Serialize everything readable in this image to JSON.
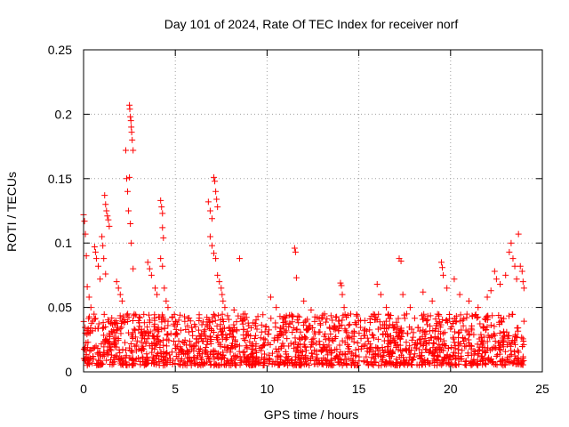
{
  "chart_data": {
    "type": "scatter",
    "title": "Day 101 of 2024, Rate Of TEC Index for receiver norf",
    "xlabel": "GPS time / hours",
    "ylabel": "ROTI / TECUs",
    "xlim": [
      0,
      25
    ],
    "ylim": [
      0,
      0.25
    ],
    "xticks": [
      0,
      5,
      10,
      15,
      20,
      25
    ],
    "xtick_labels": [
      "0",
      "5",
      "10",
      "15",
      "20",
      "25"
    ],
    "yticks": [
      0,
      0.05,
      0.1,
      0.15,
      0.2,
      0.25
    ],
    "ytick_labels": [
      "0",
      "0.05",
      "0.1",
      "0.15",
      "0.2",
      "0.25"
    ],
    "grid": true,
    "marker": "plus",
    "series_color": "#ff0000",
    "series": [
      {
        "name": "ROTI",
        "points": [
          [
            0.0,
            0.122
          ],
          [
            0.05,
            0.117
          ],
          [
            0.1,
            0.107
          ],
          [
            0.15,
            0.09
          ],
          [
            0.2,
            0.066
          ],
          [
            0.3,
            0.058
          ],
          [
            0.4,
            0.05
          ],
          [
            0.6,
            0.097
          ],
          [
            0.65,
            0.093
          ],
          [
            0.7,
            0.088
          ],
          [
            0.8,
            0.082
          ],
          [
            0.9,
            0.072
          ],
          [
            1.0,
            0.105
          ],
          [
            1.05,
            0.098
          ],
          [
            1.1,
            0.088
          ],
          [
            1.2,
            0.076
          ],
          [
            1.15,
            0.137
          ],
          [
            1.2,
            0.13
          ],
          [
            1.25,
            0.125
          ],
          [
            1.3,
            0.121
          ],
          [
            1.35,
            0.118
          ],
          [
            1.4,
            0.113
          ],
          [
            1.8,
            0.07
          ],
          [
            1.9,
            0.065
          ],
          [
            2.0,
            0.06
          ],
          [
            2.1,
            0.055
          ],
          [
            2.3,
            0.172
          ],
          [
            2.35,
            0.15
          ],
          [
            2.4,
            0.14
          ],
          [
            2.45,
            0.125
          ],
          [
            2.5,
            0.207
          ],
          [
            2.52,
            0.204
          ],
          [
            2.55,
            0.198
          ],
          [
            2.58,
            0.195
          ],
          [
            2.6,
            0.19
          ],
          [
            2.62,
            0.186
          ],
          [
            2.65,
            0.18
          ],
          [
            2.7,
            0.172
          ],
          [
            2.5,
            0.151
          ],
          [
            2.55,
            0.115
          ],
          [
            2.6,
            0.1
          ],
          [
            2.7,
            0.08
          ],
          [
            3.5,
            0.085
          ],
          [
            3.6,
            0.08
          ],
          [
            3.7,
            0.075
          ],
          [
            3.9,
            0.065
          ],
          [
            4.0,
            0.06
          ],
          [
            4.2,
            0.133
          ],
          [
            4.25,
            0.128
          ],
          [
            4.3,
            0.123
          ],
          [
            4.3,
            0.112
          ],
          [
            4.35,
            0.104
          ],
          [
            4.2,
            0.088
          ],
          [
            4.3,
            0.082
          ],
          [
            4.4,
            0.065
          ],
          [
            4.5,
            0.055
          ],
          [
            4.6,
            0.05
          ],
          [
            6.8,
            0.132
          ],
          [
            6.9,
            0.125
          ],
          [
            7.0,
            0.119
          ],
          [
            7.1,
            0.151
          ],
          [
            7.15,
            0.148
          ],
          [
            7.2,
            0.14
          ],
          [
            7.25,
            0.134
          ],
          [
            7.3,
            0.128
          ],
          [
            6.9,
            0.105
          ],
          [
            7.0,
            0.098
          ],
          [
            7.1,
            0.092
          ],
          [
            7.2,
            0.088
          ],
          [
            7.3,
            0.075
          ],
          [
            7.4,
            0.07
          ],
          [
            7.5,
            0.065
          ],
          [
            7.55,
            0.06
          ],
          [
            7.6,
            0.055
          ],
          [
            7.7,
            0.05
          ],
          [
            8.5,
            0.088
          ],
          [
            8.2,
            0.048
          ],
          [
            8.8,
            0.045
          ],
          [
            9.5,
            0.043
          ],
          [
            10.2,
            0.058
          ],
          [
            10.5,
            0.05
          ],
          [
            11.5,
            0.096
          ],
          [
            11.55,
            0.093
          ],
          [
            11.6,
            0.073
          ],
          [
            12.0,
            0.055
          ],
          [
            12.4,
            0.048
          ],
          [
            14.0,
            0.069
          ],
          [
            14.05,
            0.067
          ],
          [
            14.1,
            0.06
          ],
          [
            14.2,
            0.05
          ],
          [
            16.0,
            0.068
          ],
          [
            16.2,
            0.06
          ],
          [
            16.5,
            0.05
          ],
          [
            17.2,
            0.088
          ],
          [
            17.3,
            0.086
          ],
          [
            17.4,
            0.06
          ],
          [
            17.8,
            0.05
          ],
          [
            18.5,
            0.062
          ],
          [
            19.0,
            0.055
          ],
          [
            19.5,
            0.085
          ],
          [
            19.55,
            0.081
          ],
          [
            19.6,
            0.075
          ],
          [
            19.8,
            0.065
          ],
          [
            20.2,
            0.072
          ],
          [
            20.5,
            0.06
          ],
          [
            21.0,
            0.055
          ],
          [
            21.5,
            0.05
          ],
          [
            22.0,
            0.058
          ],
          [
            22.2,
            0.063
          ],
          [
            22.4,
            0.078
          ],
          [
            22.5,
            0.072
          ],
          [
            22.7,
            0.068
          ],
          [
            23.0,
            0.075
          ],
          [
            23.2,
            0.093
          ],
          [
            23.3,
            0.1
          ],
          [
            23.4,
            0.088
          ],
          [
            23.5,
            0.082
          ],
          [
            23.6,
            0.072
          ],
          [
            23.7,
            0.107
          ],
          [
            23.8,
            0.082
          ],
          [
            23.9,
            0.078
          ],
          [
            23.95,
            0.07
          ],
          [
            24.0,
            0.065
          ]
        ]
      }
    ],
    "dense_band": {
      "x_range": [
        0,
        24
      ],
      "y_range": [
        0.005,
        0.045
      ],
      "description_note": "many points"
    }
  }
}
